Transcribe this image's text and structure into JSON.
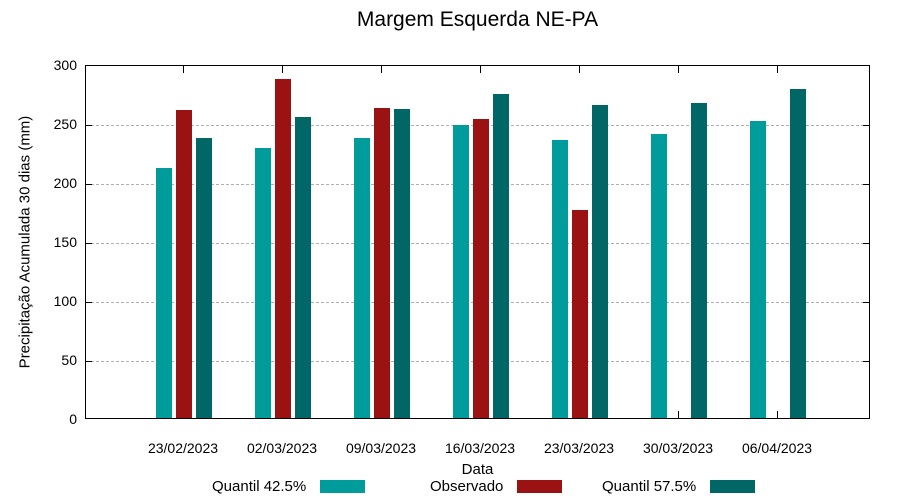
{
  "chart_data": {
    "type": "bar",
    "title": "Margem Esquerda NE-PA",
    "xlabel": "Data",
    "ylabel": "Precipitação Acumulada 30 dias (mm)",
    "ylim": [
      0,
      300
    ],
    "ytick_step": 50,
    "grid": "horizontal-dashed",
    "legend_position": "bottom",
    "categories": [
      "23/02/2023",
      "02/03/2023",
      "09/03/2023",
      "16/03/2023",
      "23/03/2023",
      "30/03/2023",
      "06/04/2023"
    ],
    "series": [
      {
        "name": "Quantil 42.5%",
        "color": "#009C9C",
        "values": [
          212,
          229,
          237,
          248,
          236,
          241,
          252
        ]
      },
      {
        "name": "Observado",
        "color": "#9B1212",
        "values": [
          261,
          287,
          263,
          253,
          176,
          null,
          null
        ]
      },
      {
        "name": "Quantil 57.5%",
        "color": "#006666",
        "values": [
          237,
          255,
          262,
          275,
          265,
          267,
          279
        ]
      }
    ]
  }
}
